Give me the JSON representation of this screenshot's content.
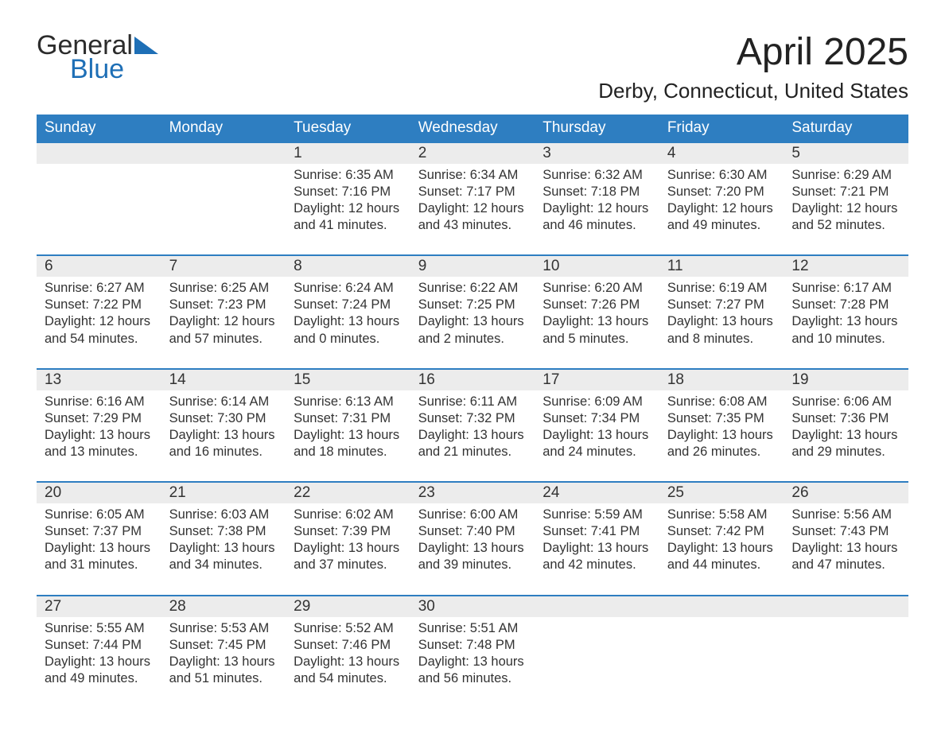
{
  "logo": {
    "word1": "General",
    "word2": "Blue",
    "flag_color": "#1e6fb6"
  },
  "title": "April 2025",
  "location": "Derby, Connecticut, United States",
  "colors": {
    "header_bg": "#2e7ec1",
    "header_text": "#ffffff",
    "daynum_bg": "#ececec",
    "row_border": "#2e7ec1",
    "body_text": "#333333",
    "page_bg": "#ffffff"
  },
  "typography": {
    "title_fontsize": 48,
    "location_fontsize": 26,
    "header_fontsize": 19,
    "daynum_fontsize": 19,
    "body_fontsize": 16.5,
    "font_family": "Arial"
  },
  "layout": {
    "columns": 7,
    "rows": 5,
    "leading_blanks": 2,
    "trailing_blanks": 3
  },
  "day_headers": [
    "Sunday",
    "Monday",
    "Tuesday",
    "Wednesday",
    "Thursday",
    "Friday",
    "Saturday"
  ],
  "labels": {
    "sunrise": "Sunrise:",
    "sunset": "Sunset:",
    "daylight": "Daylight:"
  },
  "weeks": [
    [
      null,
      null,
      {
        "n": "1",
        "sunrise": "6:35 AM",
        "sunset": "7:16 PM",
        "daylight1": "12 hours",
        "daylight2": "and 41 minutes."
      },
      {
        "n": "2",
        "sunrise": "6:34 AM",
        "sunset": "7:17 PM",
        "daylight1": "12 hours",
        "daylight2": "and 43 minutes."
      },
      {
        "n": "3",
        "sunrise": "6:32 AM",
        "sunset": "7:18 PM",
        "daylight1": "12 hours",
        "daylight2": "and 46 minutes."
      },
      {
        "n": "4",
        "sunrise": "6:30 AM",
        "sunset": "7:20 PM",
        "daylight1": "12 hours",
        "daylight2": "and 49 minutes."
      },
      {
        "n": "5",
        "sunrise": "6:29 AM",
        "sunset": "7:21 PM",
        "daylight1": "12 hours",
        "daylight2": "and 52 minutes."
      }
    ],
    [
      {
        "n": "6",
        "sunrise": "6:27 AM",
        "sunset": "7:22 PM",
        "daylight1": "12 hours",
        "daylight2": "and 54 minutes."
      },
      {
        "n": "7",
        "sunrise": "6:25 AM",
        "sunset": "7:23 PM",
        "daylight1": "12 hours",
        "daylight2": "and 57 minutes."
      },
      {
        "n": "8",
        "sunrise": "6:24 AM",
        "sunset": "7:24 PM",
        "daylight1": "13 hours",
        "daylight2": "and 0 minutes."
      },
      {
        "n": "9",
        "sunrise": "6:22 AM",
        "sunset": "7:25 PM",
        "daylight1": "13 hours",
        "daylight2": "and 2 minutes."
      },
      {
        "n": "10",
        "sunrise": "6:20 AM",
        "sunset": "7:26 PM",
        "daylight1": "13 hours",
        "daylight2": "and 5 minutes."
      },
      {
        "n": "11",
        "sunrise": "6:19 AM",
        "sunset": "7:27 PM",
        "daylight1": "13 hours",
        "daylight2": "and 8 minutes."
      },
      {
        "n": "12",
        "sunrise": "6:17 AM",
        "sunset": "7:28 PM",
        "daylight1": "13 hours",
        "daylight2": "and 10 minutes."
      }
    ],
    [
      {
        "n": "13",
        "sunrise": "6:16 AM",
        "sunset": "7:29 PM",
        "daylight1": "13 hours",
        "daylight2": "and 13 minutes."
      },
      {
        "n": "14",
        "sunrise": "6:14 AM",
        "sunset": "7:30 PM",
        "daylight1": "13 hours",
        "daylight2": "and 16 minutes."
      },
      {
        "n": "15",
        "sunrise": "6:13 AM",
        "sunset": "7:31 PM",
        "daylight1": "13 hours",
        "daylight2": "and 18 minutes."
      },
      {
        "n": "16",
        "sunrise": "6:11 AM",
        "sunset": "7:32 PM",
        "daylight1": "13 hours",
        "daylight2": "and 21 minutes."
      },
      {
        "n": "17",
        "sunrise": "6:09 AM",
        "sunset": "7:34 PM",
        "daylight1": "13 hours",
        "daylight2": "and 24 minutes."
      },
      {
        "n": "18",
        "sunrise": "6:08 AM",
        "sunset": "7:35 PM",
        "daylight1": "13 hours",
        "daylight2": "and 26 minutes."
      },
      {
        "n": "19",
        "sunrise": "6:06 AM",
        "sunset": "7:36 PM",
        "daylight1": "13 hours",
        "daylight2": "and 29 minutes."
      }
    ],
    [
      {
        "n": "20",
        "sunrise": "6:05 AM",
        "sunset": "7:37 PM",
        "daylight1": "13 hours",
        "daylight2": "and 31 minutes."
      },
      {
        "n": "21",
        "sunrise": "6:03 AM",
        "sunset": "7:38 PM",
        "daylight1": "13 hours",
        "daylight2": "and 34 minutes."
      },
      {
        "n": "22",
        "sunrise": "6:02 AM",
        "sunset": "7:39 PM",
        "daylight1": "13 hours",
        "daylight2": "and 37 minutes."
      },
      {
        "n": "23",
        "sunrise": "6:00 AM",
        "sunset": "7:40 PM",
        "daylight1": "13 hours",
        "daylight2": "and 39 minutes."
      },
      {
        "n": "24",
        "sunrise": "5:59 AM",
        "sunset": "7:41 PM",
        "daylight1": "13 hours",
        "daylight2": "and 42 minutes."
      },
      {
        "n": "25",
        "sunrise": "5:58 AM",
        "sunset": "7:42 PM",
        "daylight1": "13 hours",
        "daylight2": "and 44 minutes."
      },
      {
        "n": "26",
        "sunrise": "5:56 AM",
        "sunset": "7:43 PM",
        "daylight1": "13 hours",
        "daylight2": "and 47 minutes."
      }
    ],
    [
      {
        "n": "27",
        "sunrise": "5:55 AM",
        "sunset": "7:44 PM",
        "daylight1": "13 hours",
        "daylight2": "and 49 minutes."
      },
      {
        "n": "28",
        "sunrise": "5:53 AM",
        "sunset": "7:45 PM",
        "daylight1": "13 hours",
        "daylight2": "and 51 minutes."
      },
      {
        "n": "29",
        "sunrise": "5:52 AM",
        "sunset": "7:46 PM",
        "daylight1": "13 hours",
        "daylight2": "and 54 minutes."
      },
      {
        "n": "30",
        "sunrise": "5:51 AM",
        "sunset": "7:48 PM",
        "daylight1": "13 hours",
        "daylight2": "and 56 minutes."
      },
      null,
      null,
      null
    ]
  ]
}
